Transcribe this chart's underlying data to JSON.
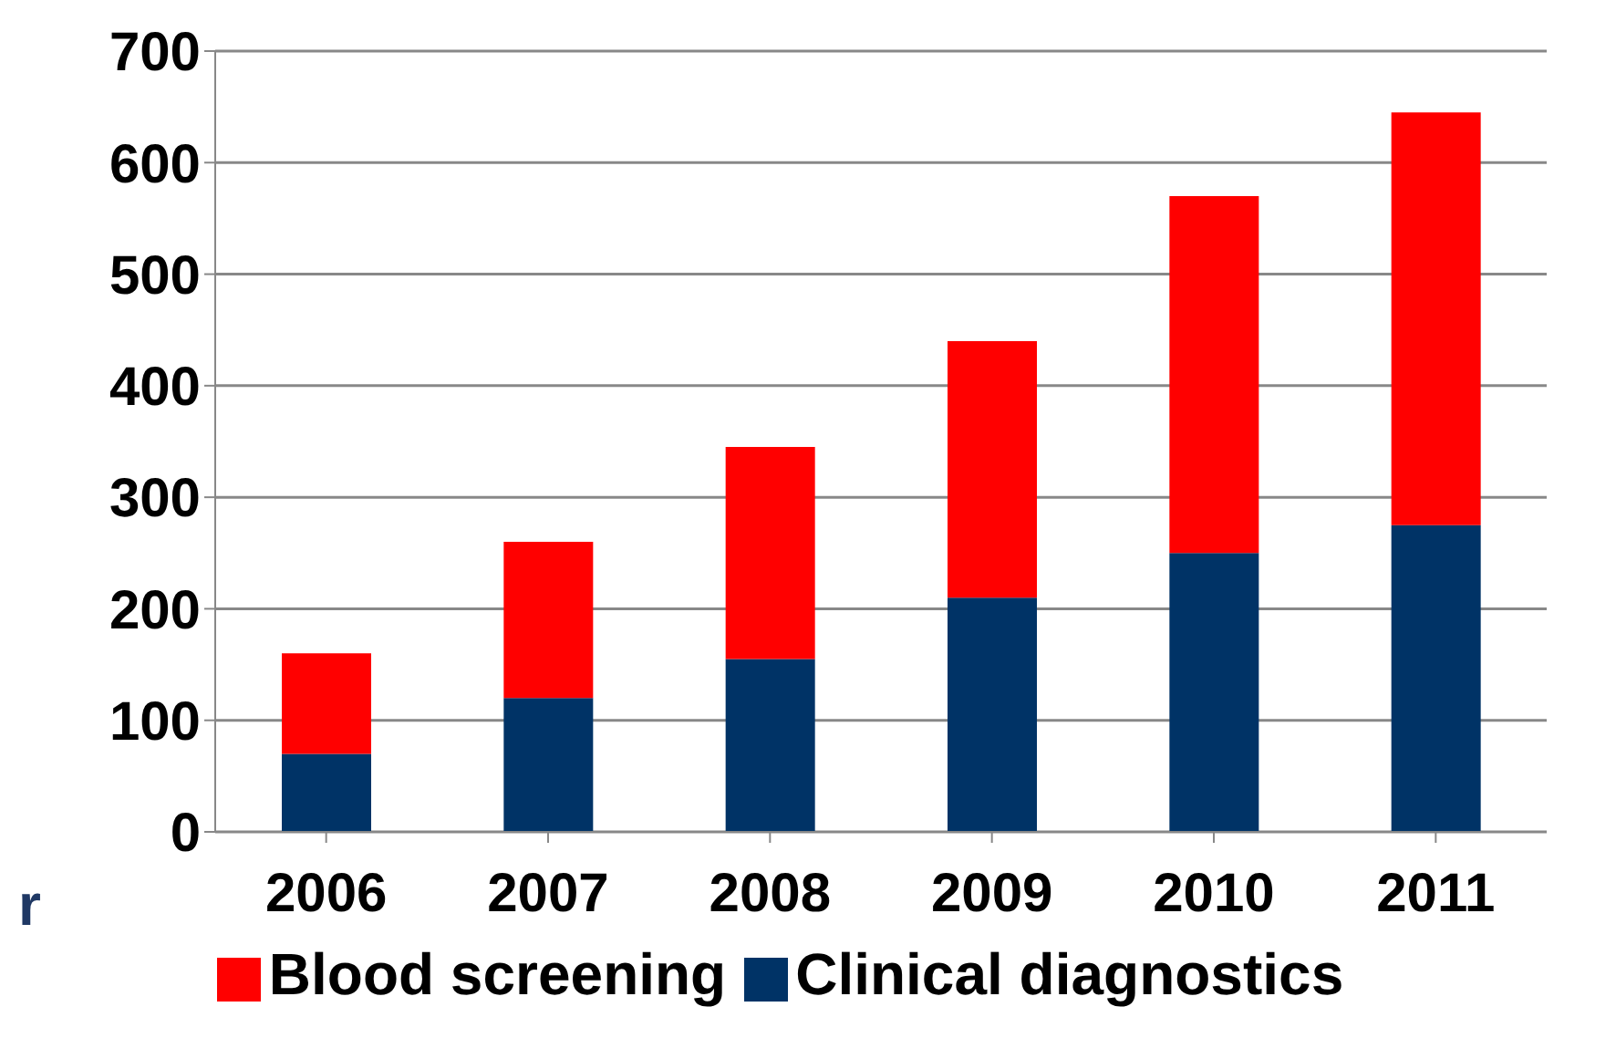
{
  "chart_data": {
    "type": "bar",
    "stacked": true,
    "categories": [
      "2006",
      "2007",
      "2008",
      "2009",
      "2010",
      "2011"
    ],
    "series": [
      {
        "name": "Clinical diagnostics",
        "color": "#003366",
        "values": [
          70,
          120,
          155,
          210,
          250,
          275
        ]
      },
      {
        "name": "Blood screening",
        "color": "#ff0000",
        "values": [
          90,
          140,
          190,
          230,
          320,
          370
        ]
      }
    ],
    "ylim": [
      0,
      700
    ],
    "yticks": [
      0,
      100,
      200,
      300,
      400,
      500,
      600,
      700
    ],
    "grid": "y",
    "legend": "bottom",
    "annotations": [
      "r"
    ]
  }
}
